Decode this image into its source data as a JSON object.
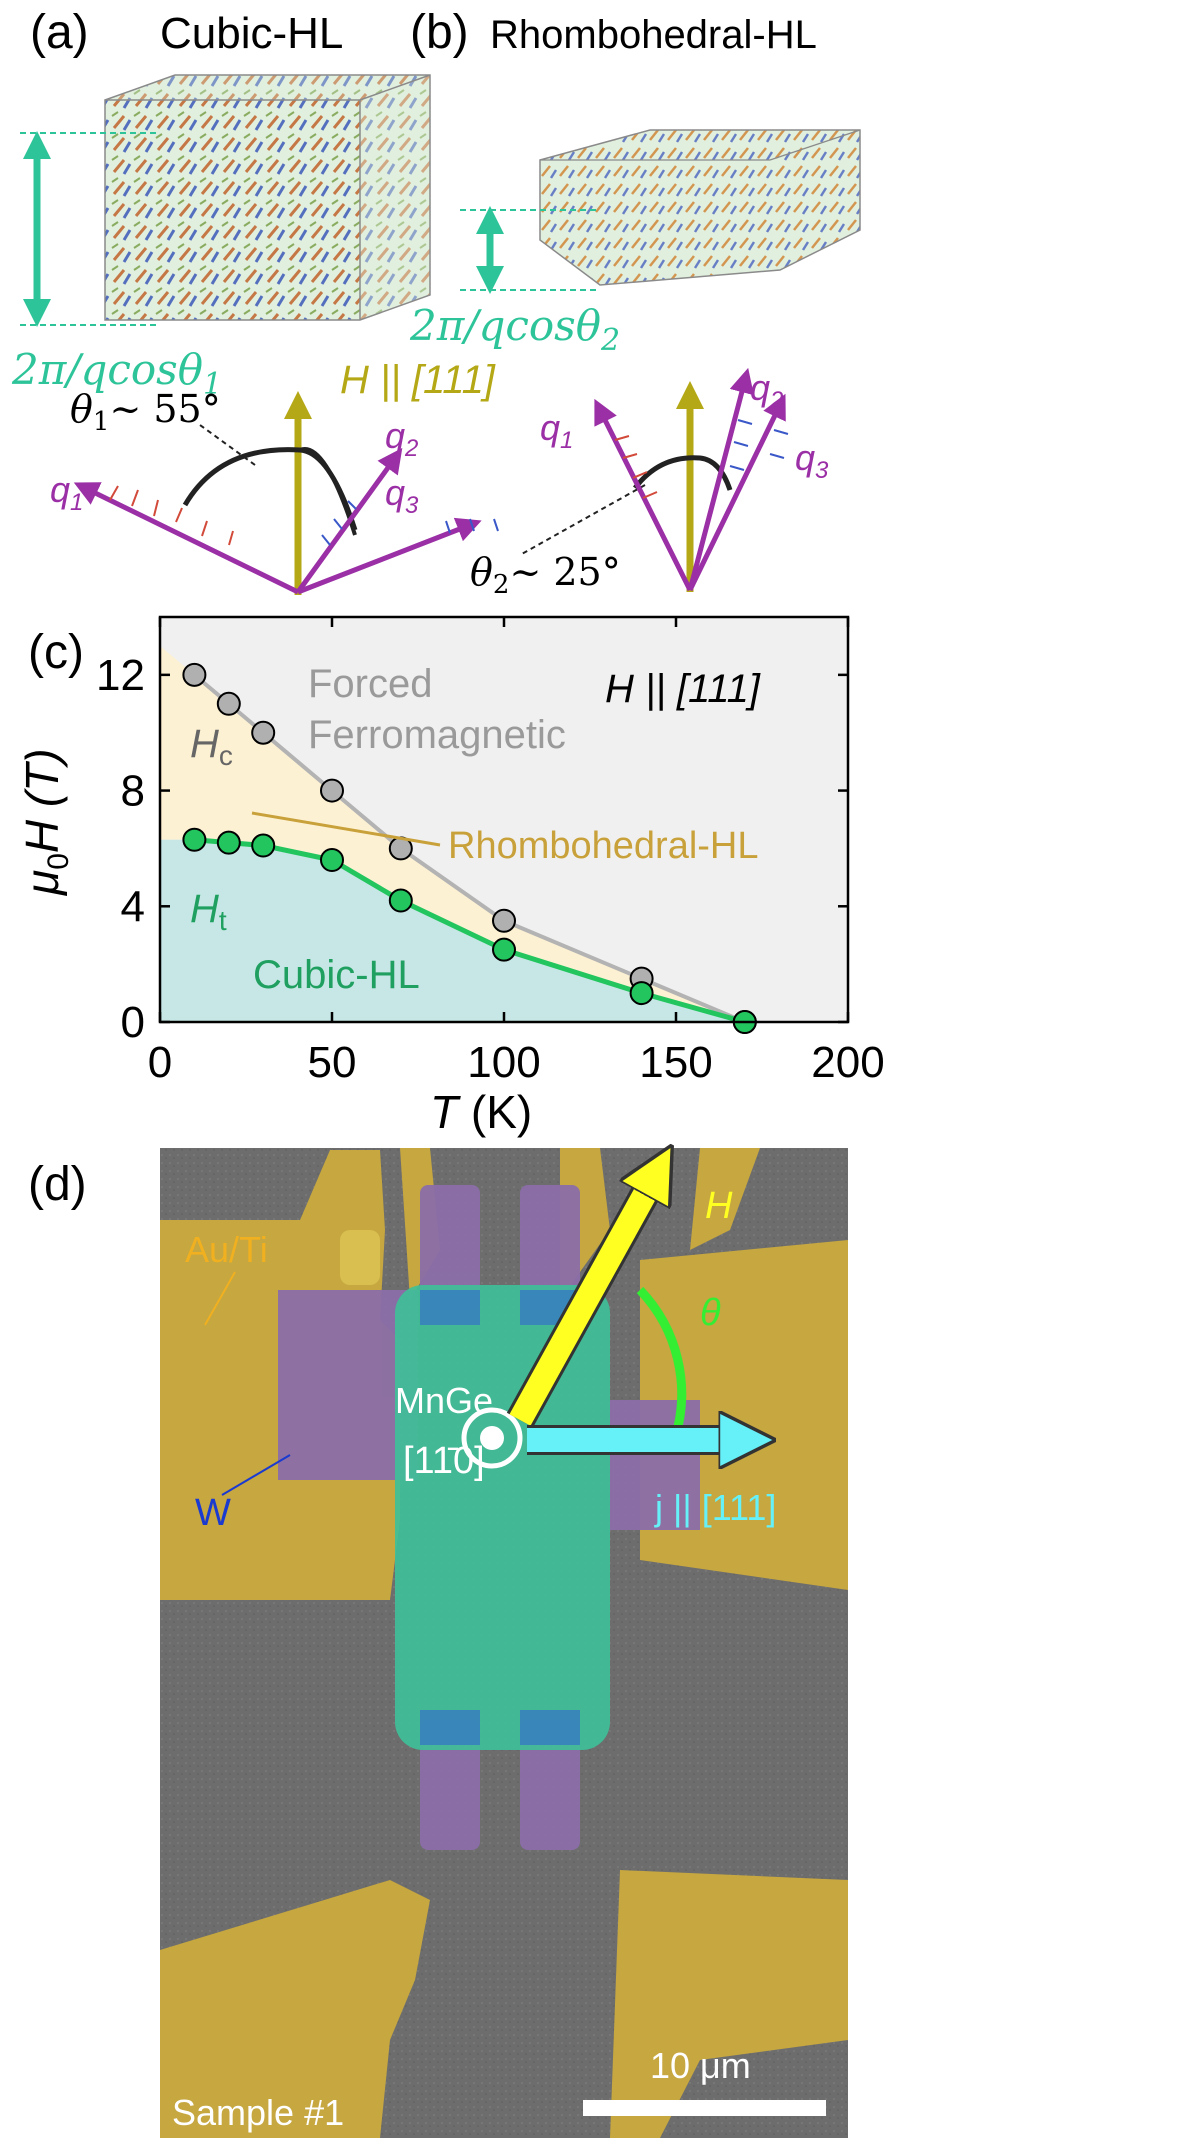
{
  "panel_a": {
    "label": "(a)",
    "title": "Cubic-HL",
    "period_label": "2π/qcosθ",
    "period_sub": "1",
    "angle_symbol": "θ",
    "angle_sub": "1",
    "angle_value": "~ 55°",
    "q1": "q",
    "q1_sub": "1",
    "q2": "q",
    "q2_sub": "2",
    "q3": "q",
    "q3_sub": "3",
    "field_label": "H || [111]"
  },
  "panel_b": {
    "label": "(b)",
    "title": "Rhombohedral-HL",
    "period_label": "2π/qcosθ",
    "period_sub": "2",
    "angle_symbol": "θ",
    "angle_sub": "2",
    "angle_value": "~ 25°",
    "q1": "q",
    "q1_sub": "1",
    "q2": "q",
    "q2_sub": "2",
    "q3": "q",
    "q3_sub": "3"
  },
  "panel_c": {
    "label": "(c)",
    "field_annotation": "H || [111]",
    "region_ff_line1": "Forced",
    "region_ff_line2": "Ferromagnetic",
    "region_rhomb": "Rhombohedral-HL",
    "region_cubic": "Cubic-HL",
    "hc_label": "H",
    "hc_sub": "c",
    "ht_label": "H",
    "ht_sub": "t",
    "ylabel_mu": "μ",
    "ylabel_sub": "0",
    "ylabel_rest": "H (T)",
    "xlabel_T": "T",
    "xlabel_rest": " (K)"
  },
  "chart_data": {
    "type": "scatter",
    "title": "",
    "xlabel": "T (K)",
    "ylabel": "μ0H (T)",
    "xlim": [
      0,
      200
    ],
    "ylim": [
      0,
      14
    ],
    "xticks": [
      "0",
      "50",
      "100",
      "150",
      "200"
    ],
    "yticks": [
      "0",
      "4",
      "8",
      "12"
    ],
    "series": [
      {
        "name": "Hc",
        "color": "#aaaaaa",
        "x": [
          10,
          20,
          30,
          50,
          70,
          100,
          140,
          170
        ],
        "y": [
          12.0,
          11.0,
          10.0,
          8.0,
          6.0,
          3.5,
          1.5,
          0.0
        ]
      },
      {
        "name": "Ht",
        "color": "#22c55e",
        "x": [
          10,
          20,
          30,
          50,
          70,
          100,
          140,
          170
        ],
        "y": [
          6.3,
          6.2,
          6.1,
          5.6,
          4.2,
          2.5,
          1.0,
          0.0
        ]
      }
    ]
  },
  "panel_d": {
    "label": "(d)",
    "electrode_label": "Au/Ti",
    "w_label": "W",
    "crystal_label": "MnGe",
    "direction_label": "[11̄0]",
    "h_label": "H",
    "theta_label": "θ",
    "current_label": "j || [111]",
    "sample_label": "Sample #1",
    "scale_label": "10 μm"
  },
  "colors": {
    "teal": "#2ec49a",
    "olive": "#b5a816",
    "purple": "#9b2fa6",
    "forced_bg": "#f0f0f0",
    "rhomb_bg": "#fdf1d3",
    "cubic_bg": "#c6e7e5",
    "ht_green": "#22c55e",
    "rhomb_text": "#c9a13a",
    "cubic_text": "#20a060"
  }
}
